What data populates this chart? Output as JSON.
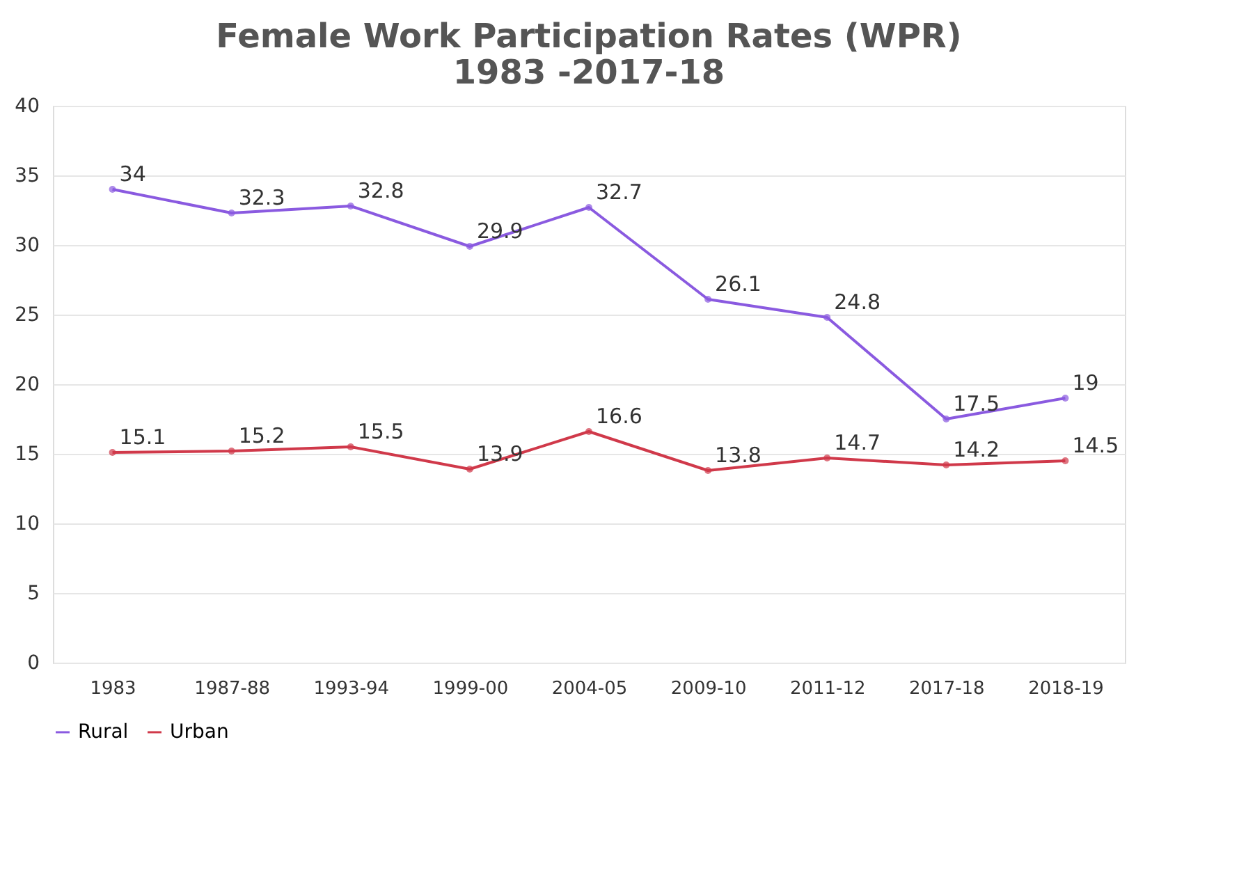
{
  "chart_data": {
    "type": "line",
    "title": [
      "Female Work Participation Rates (WPR)",
      "1983 -2017-18"
    ],
    "categories": [
      "1983",
      "1987-88",
      "1993-94",
      "1999-00",
      "2004-05",
      "2009-10",
      "2011-12",
      "2017-18",
      "2018-19"
    ],
    "series": [
      {
        "name": "Rural",
        "color": "#8a5ae0",
        "values": [
          34,
          32.3,
          32.8,
          29.9,
          32.7,
          26.1,
          24.8,
          17.5,
          19
        ]
      },
      {
        "name": "Urban",
        "color": "#d0394a",
        "values": [
          15.1,
          15.2,
          15.5,
          13.9,
          16.6,
          13.8,
          14.7,
          14.2,
          14.5
        ]
      }
    ],
    "ylim": [
      0,
      40
    ],
    "yticks": [
      0,
      5,
      10,
      15,
      20,
      25,
      30,
      35,
      40
    ],
    "grid": "y",
    "legend": "bottom",
    "marker": "circle",
    "line_style": "solid",
    "data_labels": true
  }
}
